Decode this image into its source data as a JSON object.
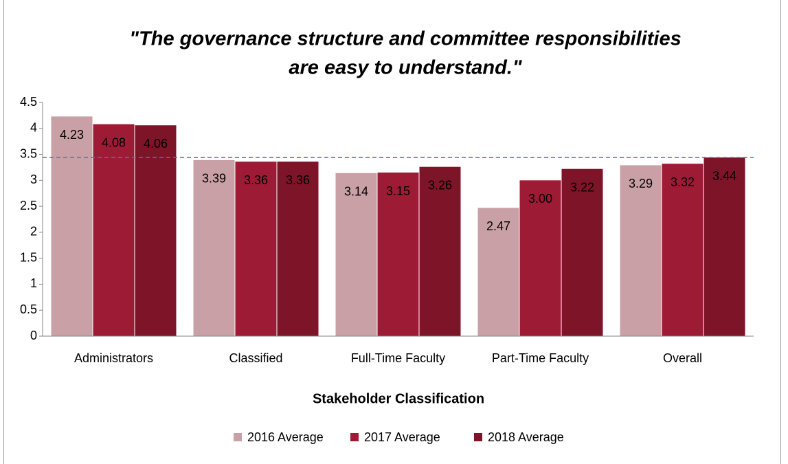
{
  "chart_data": {
    "type": "bar",
    "title": [
      "\"The governance structure and committee responsibilities",
      "are easy to understand.\""
    ],
    "x_label": "Stakeholder Classification",
    "categories": [
      "Administrators",
      "Classified",
      "Full-Time Faculty",
      "Part-Time Faculty",
      "Overall"
    ],
    "series": [
      {
        "name": "2016 Average",
        "color": "#c9a0a6",
        "values": [
          4.23,
          3.39,
          3.14,
          2.47,
          3.29
        ],
        "value_labels": [
          "4.23",
          "3.39",
          "3.14",
          "2.47",
          "3.29"
        ],
        "label_color": "#000000"
      },
      {
        "name": "2017 Average",
        "color": "#9e1b36",
        "values": [
          4.08,
          3.36,
          3.15,
          3.0,
          3.32
        ],
        "value_labels": [
          "4.08",
          "3.36",
          "3.15",
          "3.00",
          "3.32"
        ],
        "label_color": "#ffffff"
      },
      {
        "name": "2018 Average",
        "color": "#7e1428",
        "values": [
          4.06,
          3.36,
          3.26,
          3.22,
          3.44
        ],
        "value_labels": [
          "4.06",
          "3.36",
          "3.26",
          "3.22",
          "3.44"
        ],
        "label_color": "#ffffff"
      }
    ],
    "reference_line": {
      "value": 3.44,
      "color": "#3a7bd5"
    },
    "ylim": [
      0,
      4.5
    ],
    "yticks": [
      0,
      0.5,
      1,
      1.5,
      2,
      2.5,
      3,
      3.5,
      4,
      4.5
    ],
    "legend": "bottom"
  }
}
